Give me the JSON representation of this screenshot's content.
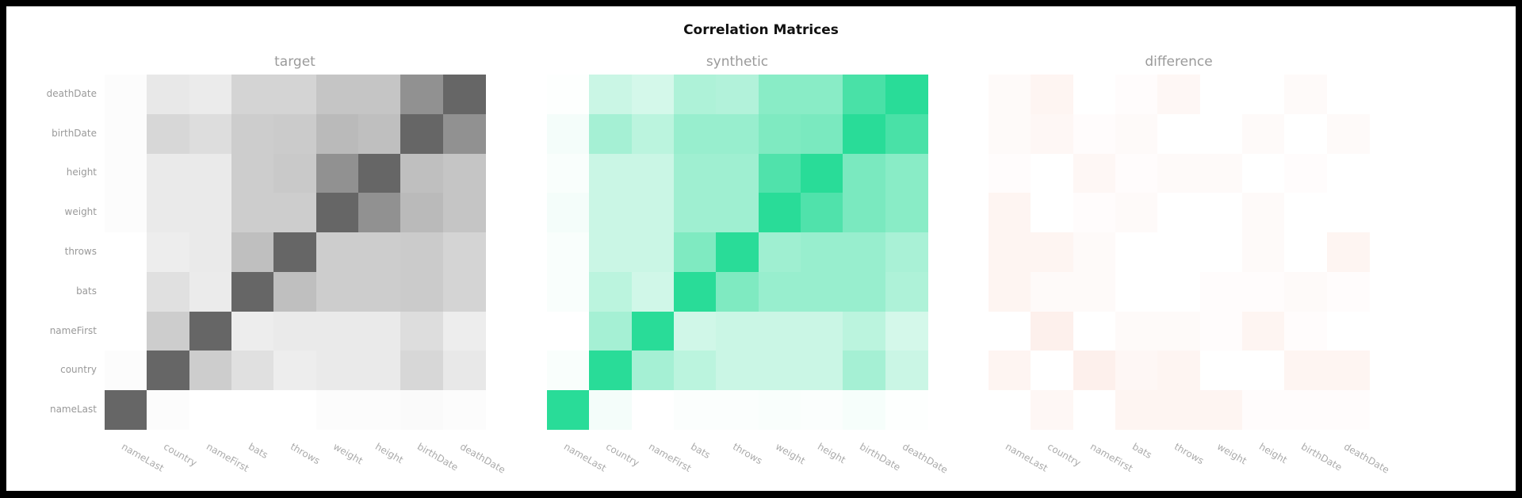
{
  "chart_data": {
    "type": "heatmap",
    "title": "Correlation Matrices",
    "rows": [
      "deathDate",
      "birthDate",
      "height",
      "weight",
      "throws",
      "bats",
      "nameFirst",
      "country",
      "nameLast"
    ],
    "columns": [
      "nameLast",
      "country",
      "nameFirst",
      "bats",
      "throws",
      "weight",
      "height",
      "birthDate",
      "deathDate"
    ],
    "panels": [
      {
        "name": "target",
        "color": "#666666",
        "values": [
          [
            0.02,
            0.15,
            0.13,
            0.28,
            0.28,
            0.38,
            0.38,
            0.72,
            1.0
          ],
          [
            0.02,
            0.26,
            0.22,
            0.33,
            0.34,
            0.45,
            0.42,
            1.0,
            0.72
          ],
          [
            0.02,
            0.14,
            0.14,
            0.33,
            0.35,
            0.72,
            1.0,
            0.42,
            0.38
          ],
          [
            0.02,
            0.14,
            0.14,
            0.33,
            0.33,
            1.0,
            0.72,
            0.45,
            0.38
          ],
          [
            0.0,
            0.12,
            0.14,
            0.42,
            1.0,
            0.33,
            0.33,
            0.34,
            0.28
          ],
          [
            0.0,
            0.2,
            0.13,
            1.0,
            0.42,
            0.33,
            0.33,
            0.34,
            0.28
          ],
          [
            0.0,
            0.33,
            1.0,
            0.12,
            0.14,
            0.14,
            0.14,
            0.22,
            0.12
          ],
          [
            0.02,
            1.0,
            0.33,
            0.2,
            0.12,
            0.14,
            0.14,
            0.26,
            0.15
          ],
          [
            1.0,
            0.02,
            0.0,
            0.0,
            0.0,
            0.02,
            0.02,
            0.03,
            0.02
          ]
        ]
      },
      {
        "name": "synthetic",
        "color": "#29dc98",
        "values": [
          [
            0.01,
            0.25,
            0.2,
            0.38,
            0.36,
            0.55,
            0.55,
            0.85,
            1.0
          ],
          [
            0.05,
            0.42,
            0.32,
            0.48,
            0.48,
            0.6,
            0.62,
            1.0,
            0.85
          ],
          [
            0.03,
            0.25,
            0.25,
            0.45,
            0.45,
            0.82,
            1.0,
            0.62,
            0.55
          ],
          [
            0.05,
            0.25,
            0.25,
            0.45,
            0.45,
            1.0,
            0.82,
            0.62,
            0.55
          ],
          [
            0.03,
            0.25,
            0.25,
            0.6,
            1.0,
            0.45,
            0.48,
            0.48,
            0.4
          ],
          [
            0.03,
            0.32,
            0.22,
            1.0,
            0.6,
            0.48,
            0.48,
            0.48,
            0.38
          ],
          [
            0.0,
            0.42,
            1.0,
            0.22,
            0.25,
            0.25,
            0.25,
            0.32,
            0.2
          ],
          [
            0.03,
            1.0,
            0.42,
            0.32,
            0.25,
            0.25,
            0.25,
            0.42,
            0.25
          ],
          [
            1.0,
            0.05,
            0.0,
            0.02,
            0.02,
            0.03,
            0.02,
            0.04,
            0.01
          ]
        ]
      },
      {
        "name": "difference",
        "color": "#f08060",
        "values": [
          [
            0.02,
            0.04,
            0.0,
            0.01,
            0.03,
            0.0,
            0.0,
            0.02,
            0.0
          ],
          [
            0.02,
            0.03,
            0.01,
            0.02,
            0.0,
            0.0,
            0.02,
            0.0,
            0.02
          ],
          [
            0.01,
            0.0,
            0.03,
            0.01,
            0.02,
            0.02,
            0.0,
            0.01,
            0.0
          ],
          [
            0.04,
            0.0,
            0.01,
            0.02,
            0.0,
            0.0,
            0.02,
            0.0,
            0.0
          ],
          [
            0.04,
            0.04,
            0.02,
            0.0,
            0.0,
            0.0,
            0.02,
            0.0,
            0.04
          ],
          [
            0.04,
            0.02,
            0.02,
            0.0,
            0.0,
            0.01,
            0.01,
            0.02,
            0.01
          ],
          [
            0.0,
            0.06,
            0.0,
            0.02,
            0.02,
            0.01,
            0.04,
            0.01,
            0.0
          ],
          [
            0.04,
            0.0,
            0.06,
            0.03,
            0.04,
            0.0,
            0.0,
            0.04,
            0.04
          ],
          [
            0.0,
            0.03,
            0.0,
            0.04,
            0.04,
            0.04,
            0.01,
            0.01,
            0.01
          ]
        ]
      }
    ]
  }
}
